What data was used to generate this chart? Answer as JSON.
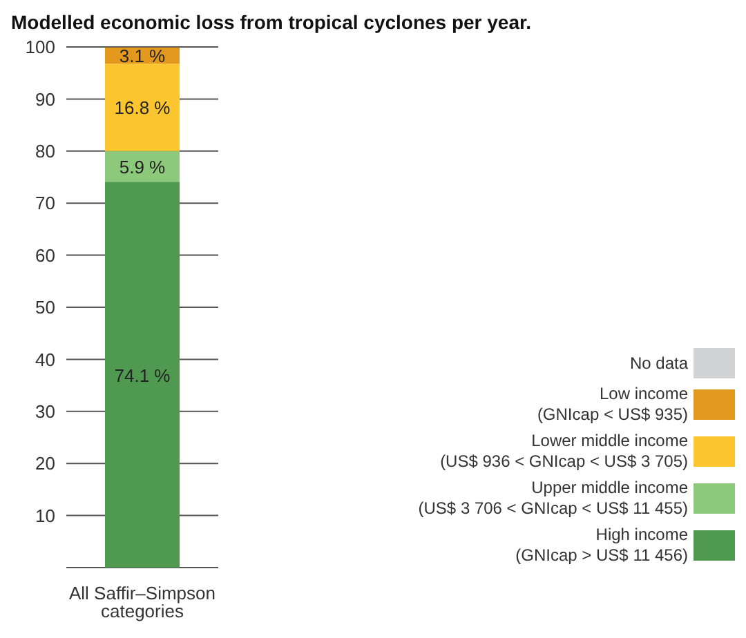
{
  "chart_data": {
    "type": "bar",
    "stacked": true,
    "title": "Modelled economic loss from tropical cyclones per year.",
    "categories": [
      "All Saffir–Simpson categories"
    ],
    "series": [
      {
        "name": "High income\n(GNIcap > US$ 11 456)",
        "color": "#4f9a50",
        "values": [
          74.1
        ],
        "value_labels": [
          "74.1 %"
        ]
      },
      {
        "name": "Upper middle income\n(US$ 3 706 < GNIcap < US$ 11 455)",
        "color": "#8cc97a",
        "values": [
          5.9
        ],
        "value_labels": [
          "5.9 %"
        ]
      },
      {
        "name": "Lower middle income\n(US$ 936 < GNIcap < US$ 3 705)",
        "color": "#fdc52e",
        "values": [
          16.8
        ],
        "value_labels": [
          "16.8 %"
        ]
      },
      {
        "name": "Low income\n(GNIcap < US$ 935)",
        "color": "#e2991d",
        "values": [
          3.1
        ],
        "value_labels": [
          "3.1 %"
        ]
      },
      {
        "name": "No data",
        "color": "#d1d3d4",
        "values": [
          null
        ]
      }
    ],
    "ylim": [
      0,
      100
    ],
    "yticks": [
      10,
      20,
      30,
      40,
      50,
      60,
      70,
      80,
      90,
      100
    ],
    "grid": "y",
    "legend": "bottom right"
  }
}
